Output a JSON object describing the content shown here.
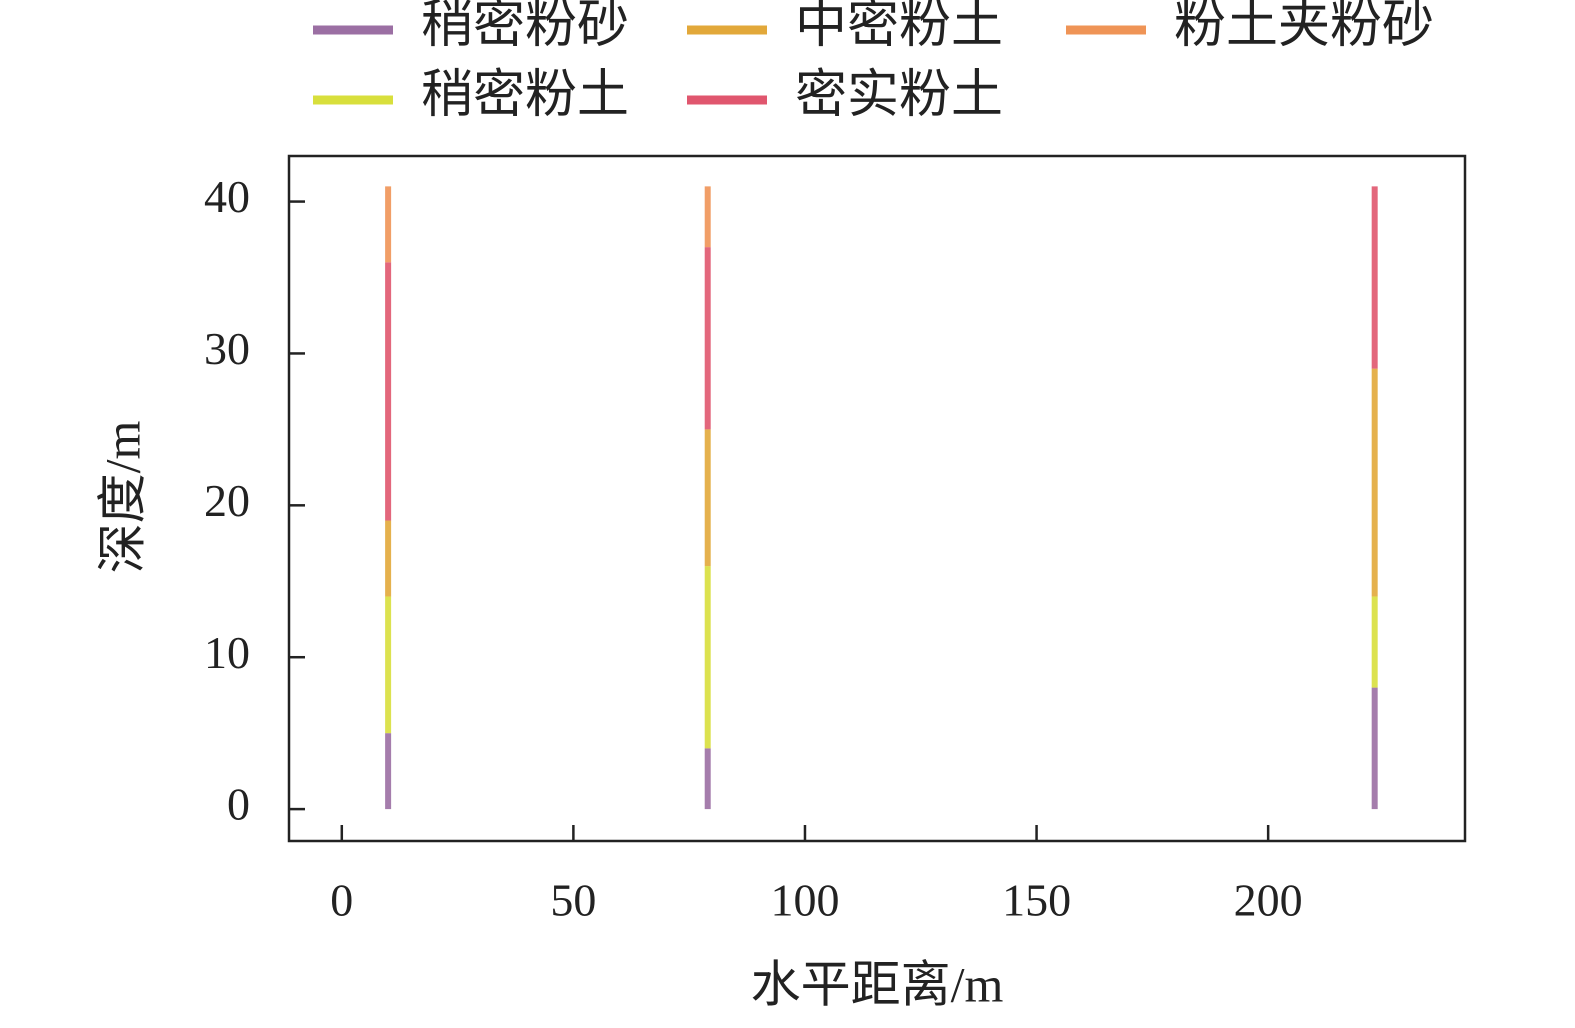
{
  "chart_data": {
    "type": "stacked_bar",
    "x": [
      10,
      79,
      223
    ],
    "series": [
      {
        "name": "稍密粉砂",
        "color": "#9b6fa3",
        "values": [
          5,
          4,
          8
        ]
      },
      {
        "name": "稍密粉土",
        "color": "#d8df3c",
        "values": [
          9,
          12,
          6
        ]
      },
      {
        "name": "中密粉土",
        "color": "#e2a83a",
        "values": [
          5,
          9,
          15
        ]
      },
      {
        "name": "密实粉土",
        "color": "#e0566e",
        "values": [
          17,
          12,
          12
        ]
      },
      {
        "name": "粉土夹粉砂",
        "color": "#ef9456",
        "values": [
          5,
          4,
          null
        ]
      }
    ],
    "xlabel": "水平距离/m",
    "ylabel": "深度/m",
    "xlim": [
      -11.4,
      242.5
    ],
    "ylim": [
      -2.1,
      43
    ],
    "xticks": [
      0,
      50,
      100,
      150,
      200
    ],
    "yticks": [
      0,
      10,
      20,
      30,
      40
    ],
    "legend_ncol": 3
  }
}
